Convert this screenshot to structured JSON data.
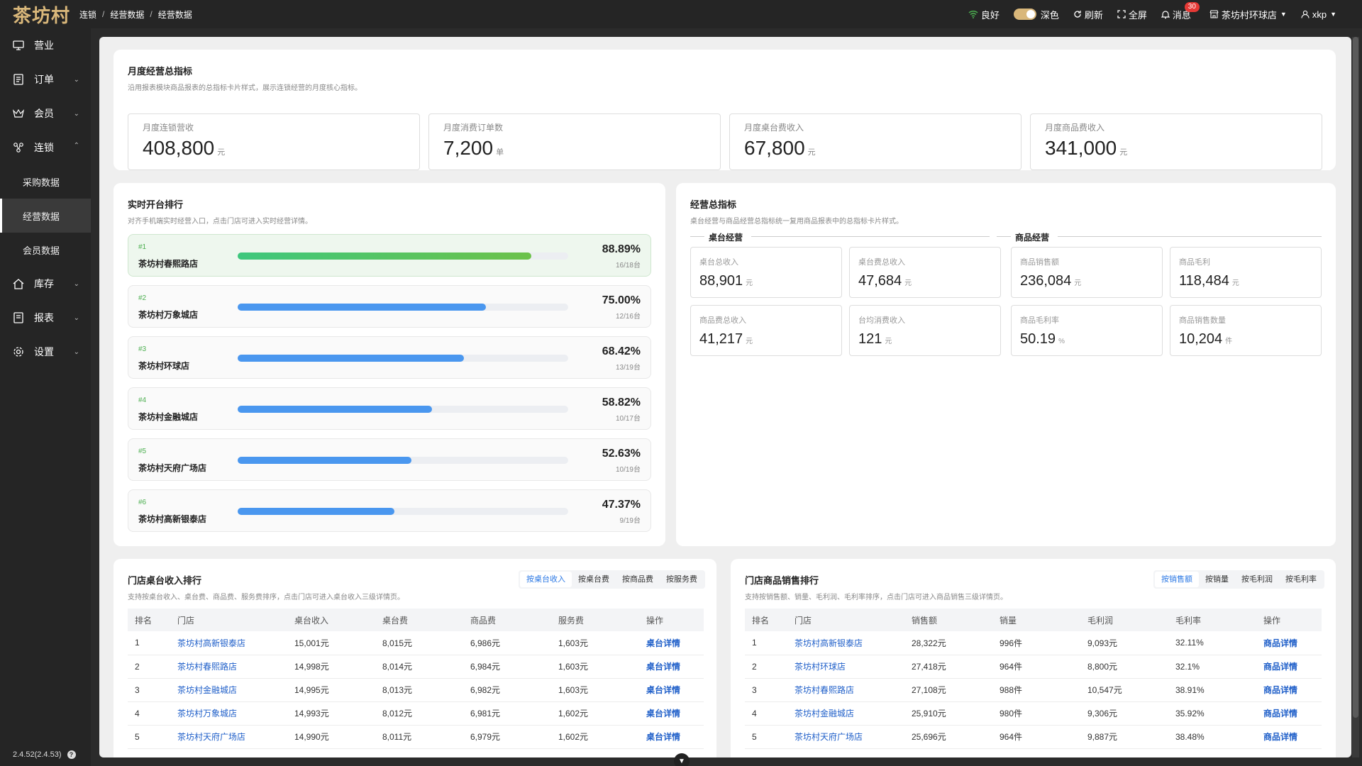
{
  "app": {
    "logo": "茶坊村"
  },
  "breadcrumb": [
    "连锁",
    "经营数据",
    "经营数据"
  ],
  "topbar": {
    "signal_label": "良好",
    "theme_label": "深色",
    "refresh_label": "刷新",
    "fullscreen_label": "全屏",
    "messages_label": "消息",
    "messages_badge": "30",
    "store_label": "茶坊村环球店",
    "user_label": "xkp"
  },
  "sidebar": {
    "items": [
      {
        "label": "营业",
        "icon": "monitor-icon",
        "expandable": false
      },
      {
        "label": "订单",
        "icon": "document-icon",
        "expandable": true
      },
      {
        "label": "会员",
        "icon": "crown-icon",
        "expandable": true
      },
      {
        "label": "连锁",
        "icon": "network-icon",
        "expandable": true,
        "expanded": true
      }
    ],
    "sub_items": [
      "采购数据",
      "经营数据",
      "会员数据"
    ],
    "active_sub": "经营数据",
    "items_after": [
      {
        "label": "库存",
        "icon": "home-icon"
      },
      {
        "label": "报表",
        "icon": "report-icon"
      },
      {
        "label": "设置",
        "icon": "gear-icon"
      }
    ],
    "version": "2.4.52(2.4.53)"
  },
  "monthly": {
    "title": "月度经营总指标",
    "desc": "沿用报表模块商品报表的总指标卡片样式，展示连锁经营的月度核心指标。",
    "kpis": [
      {
        "label": "月度连锁营收",
        "value": "408,800",
        "unit": "元"
      },
      {
        "label": "月度消费订单数",
        "value": "7,200",
        "unit": "单"
      },
      {
        "label": "月度桌台费收入",
        "value": "67,800",
        "unit": "元"
      },
      {
        "label": "月度商品费收入",
        "value": "341,000",
        "unit": "元"
      }
    ]
  },
  "realtime": {
    "title": "实时开台排行",
    "desc": "对齐手机端实时经营入口，点击门店可进入实时经营详情。",
    "rows": [
      {
        "rank": "#1",
        "name": "茶坊村春熙路店",
        "pct": "88.89%",
        "ratio": 0.8889,
        "count": "16/18台"
      },
      {
        "rank": "#2",
        "name": "茶坊村万象城店",
        "pct": "75.00%",
        "ratio": 0.75,
        "count": "12/16台"
      },
      {
        "rank": "#3",
        "name": "茶坊村环球店",
        "pct": "68.42%",
        "ratio": 0.6842,
        "count": "13/19台"
      },
      {
        "rank": "#4",
        "name": "茶坊村金融城店",
        "pct": "58.82%",
        "ratio": 0.5882,
        "count": "10/17台"
      },
      {
        "rank": "#5",
        "name": "茶坊村天府广场店",
        "pct": "52.63%",
        "ratio": 0.5263,
        "count": "10/19台"
      },
      {
        "rank": "#6",
        "name": "茶坊村高新银泰店",
        "pct": "47.37%",
        "ratio": 0.4737,
        "count": "9/19台"
      }
    ]
  },
  "overall": {
    "title": "经营总指标",
    "desc": "桌台经营与商品经营总指标统一复用商品报表中的总指标卡片样式。",
    "group_table": "桌台经营",
    "group_goods": "商品经营",
    "metrics": [
      {
        "label": "桌台总收入",
        "value": "88,901",
        "unit": "元"
      },
      {
        "label": "桌台费总收入",
        "value": "47,684",
        "unit": "元"
      },
      {
        "label": "商品销售额",
        "value": "236,084",
        "unit": "元"
      },
      {
        "label": "商品毛利",
        "value": "118,484",
        "unit": "元"
      },
      {
        "label": "商品费总收入",
        "value": "41,217",
        "unit": "元"
      },
      {
        "label": "台均消费收入",
        "value": "121",
        "unit": "元"
      },
      {
        "label": "商品毛利率",
        "value": "50.19",
        "unit": "%"
      },
      {
        "label": "商品销售数量",
        "value": "10,204",
        "unit": "件"
      }
    ]
  },
  "table_rank": {
    "title": "门店桌台收入排行",
    "desc": "支持按桌台收入、桌台费、商品费、服务费排序，点击门店可进入桌台收入三级详情页。",
    "tabs": [
      "按桌台收入",
      "按桌台费",
      "按商品费",
      "按服务费"
    ],
    "active_tab": 0,
    "columns": [
      "排名",
      "门店",
      "桌台收入",
      "桌台费",
      "商品费",
      "服务费",
      "操作"
    ],
    "rows": [
      [
        "1",
        "茶坊村高新银泰店",
        "15,001元",
        "8,015元",
        "6,986元",
        "1,603元",
        "桌台详情"
      ],
      [
        "2",
        "茶坊村春熙路店",
        "14,998元",
        "8,014元",
        "6,984元",
        "1,603元",
        "桌台详情"
      ],
      [
        "3",
        "茶坊村金融城店",
        "14,995元",
        "8,013元",
        "6,982元",
        "1,603元",
        "桌台详情"
      ],
      [
        "4",
        "茶坊村万象城店",
        "14,993元",
        "8,012元",
        "6,981元",
        "1,602元",
        "桌台详情"
      ],
      [
        "5",
        "茶坊村天府广场店",
        "14,990元",
        "8,011元",
        "6,979元",
        "1,602元",
        "桌台详情"
      ]
    ]
  },
  "goods_rank": {
    "title": "门店商品销售排行",
    "desc": "支持按销售额、销量、毛利润、毛利率排序，点击门店可进入商品销售三级详情页。",
    "tabs": [
      "按销售额",
      "按销量",
      "按毛利润",
      "按毛利率"
    ],
    "active_tab": 0,
    "columns": [
      "排名",
      "门店",
      "销售额",
      "销量",
      "毛利润",
      "毛利率",
      "操作"
    ],
    "rows": [
      [
        "1",
        "茶坊村高新银泰店",
        "28,322元",
        "996件",
        "9,093元",
        "32.11%",
        "商品详情"
      ],
      [
        "2",
        "茶坊村环球店",
        "27,418元",
        "964件",
        "8,800元",
        "32.1%",
        "商品详情"
      ],
      [
        "3",
        "茶坊村春熙路店",
        "27,108元",
        "988件",
        "10,547元",
        "38.91%",
        "商品详情"
      ],
      [
        "4",
        "茶坊村金融城店",
        "25,910元",
        "980件",
        "9,306元",
        "35.92%",
        "商品详情"
      ],
      [
        "5",
        "茶坊村天府广场店",
        "25,696元",
        "964件",
        "9,887元",
        "38.48%",
        "商品详情"
      ]
    ]
  },
  "colors": {
    "accent": "#d9b77a",
    "link": "#1f5fc9",
    "bar": "#4a97ef",
    "bar_top": "#4caf50",
    "sidebar_bg": "#252525"
  }
}
